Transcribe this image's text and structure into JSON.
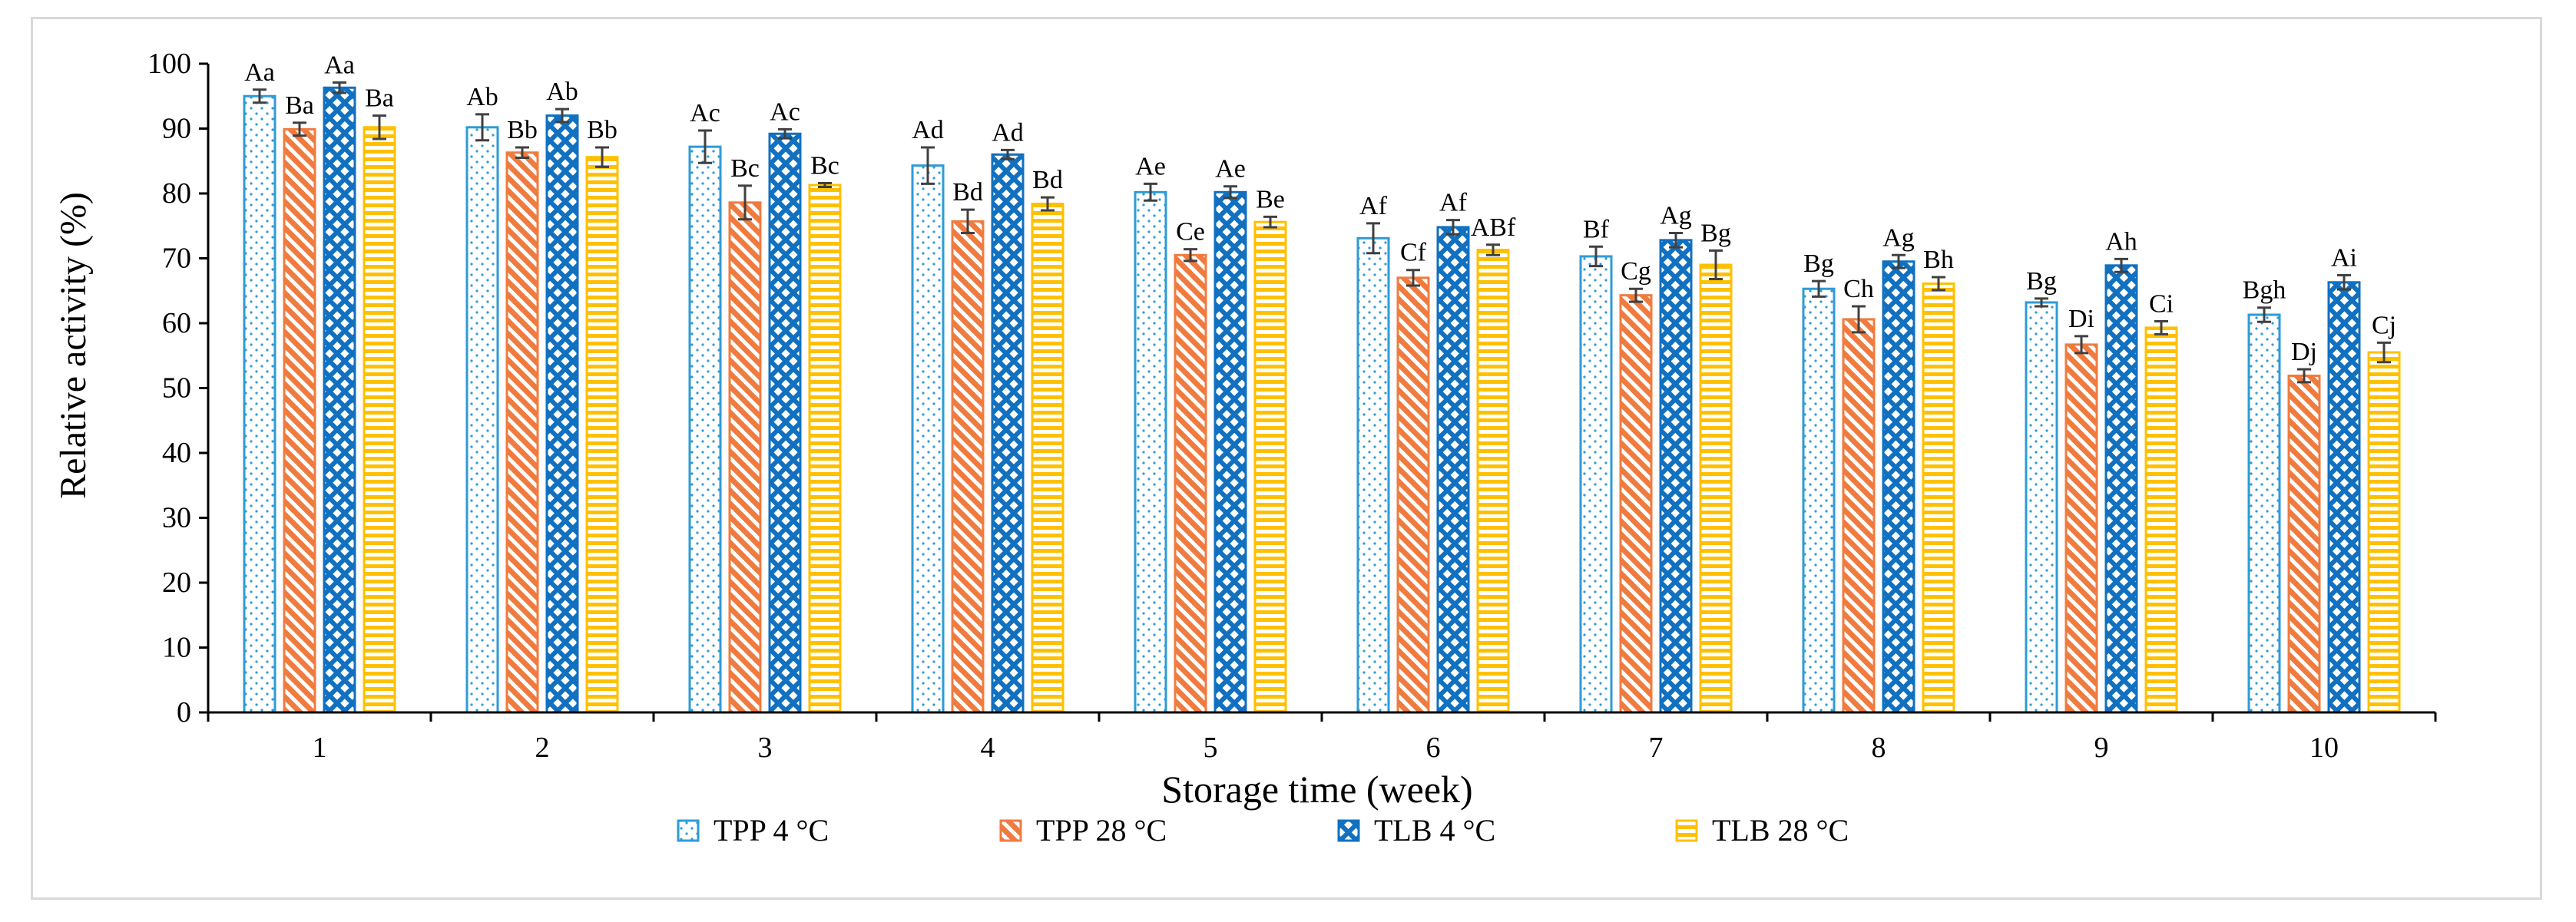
{
  "chart_data": {
    "type": "bar",
    "title": "",
    "xlabel": "Storage time (week)",
    "ylabel": "Relative activity (%)",
    "ylim": [
      0,
      100
    ],
    "yticks": [
      0,
      10,
      20,
      30,
      40,
      50,
      60,
      70,
      80,
      90,
      100
    ],
    "grid": false,
    "legend_position": "bottom",
    "categories": [
      "1",
      "2",
      "3",
      "4",
      "5",
      "6",
      "7",
      "8",
      "9",
      "10"
    ],
    "series": [
      {
        "name": "TPP 4 °C",
        "color": "#2e9bd6",
        "pattern": "dots",
        "values": [
          95,
          90.2,
          87.2,
          84.3,
          80.2,
          73.1,
          70.3,
          65.3,
          63.2,
          61.3
        ],
        "errors": [
          1.0,
          2.0,
          2.5,
          2.8,
          1.3,
          2.3,
          1.5,
          1.2,
          0.6,
          1.1
        ],
        "labels": [
          "Aa",
          "Ab",
          "Ac",
          "Ad",
          "Ae",
          "Af",
          "Bf",
          "Bg",
          "Bg",
          "Bgh"
        ]
      },
      {
        "name": "TPP 28 °C",
        "color": "#f07b3f",
        "pattern": "diagonal",
        "values": [
          89.9,
          86.3,
          78.6,
          75.7,
          70.5,
          67,
          64.3,
          60.6,
          56.7,
          51.9
        ],
        "errors": [
          1.0,
          0.8,
          2.6,
          1.8,
          0.9,
          1.2,
          1.0,
          2.0,
          1.3,
          1.0
        ],
        "labels": [
          "Ba",
          "Bb",
          "Bc",
          "Bd",
          "Ce",
          "Cf",
          "Cg",
          "Ch",
          "Di",
          "Dj"
        ]
      },
      {
        "name": "TLB 4 °C",
        "color": "#1170c0",
        "pattern": "crosshatch",
        "values": [
          96.3,
          92,
          89.2,
          86,
          80.2,
          74.8,
          72.8,
          69.5,
          68.9,
          66.3
        ],
        "errors": [
          0.8,
          1.0,
          0.7,
          0.7,
          0.9,
          1.1,
          1.1,
          1.0,
          1.0,
          1.1
        ],
        "labels": [
          "Aa",
          "Ab",
          "Ac",
          "Ad",
          "Ae",
          "Af",
          "Ag",
          "Ag",
          "Ah",
          "Ai"
        ]
      },
      {
        "name": "TLB 28 °C",
        "color": "#ffc000",
        "pattern": "horizontal",
        "values": [
          90.2,
          85.6,
          81.3,
          78.4,
          75.6,
          71.3,
          69,
          66.1,
          59.3,
          55.5
        ],
        "errors": [
          1.8,
          1.5,
          0.3,
          1.0,
          0.8,
          0.8,
          2.2,
          1.0,
          1.0,
          1.5
        ],
        "labels": [
          "Ba",
          "Bb",
          "Bc",
          "Bd",
          "Be",
          "ABf",
          "Bg",
          "Bh",
          "Ci",
          "Cj"
        ]
      }
    ]
  }
}
